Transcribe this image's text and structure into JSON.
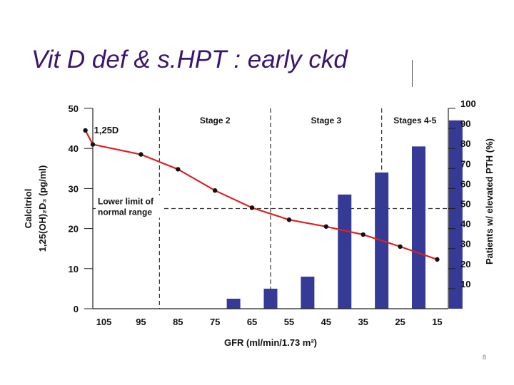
{
  "slide": {
    "title": "Vit D def & s.HPT : early ckd",
    "page_mark": "8"
  },
  "colors": {
    "title": "#3a1570",
    "bar": "#353a96",
    "line": "#e21f1f",
    "marker": "#111111"
  },
  "chart_data": {
    "type": "bar",
    "xlabel": "GFR (ml/min/1.73 m²)",
    "x_ticks": [
      105,
      95,
      85,
      75,
      65,
      55,
      45,
      35,
      25,
      15
    ],
    "x_range": [
      110,
      10
    ],
    "y_left": {
      "label_line1": "Calcitriol",
      "label_line2": "1,25(OH)₂D₃ (pg/ml)",
      "ticks": [
        0,
        10,
        20,
        30,
        40,
        50
      ],
      "range": [
        0,
        50
      ]
    },
    "y_right": {
      "label": "Patients w/ elevated PTH (%)",
      "ticks": [
        10,
        20,
        30,
        40,
        50,
        60,
        70,
        80,
        90,
        100
      ],
      "range": [
        0,
        100
      ]
    },
    "stages": [
      {
        "label": "Stage 2",
        "divider_gfr": 90
      },
      {
        "label": "Stage 3",
        "divider_gfr": 60
      },
      {
        "label": "Stages 4-5",
        "divider_gfr": 30
      }
    ],
    "reference_line": {
      "value": 25,
      "label_line1": "Lower limit of",
      "label_line2": "normal range"
    },
    "bar_series": {
      "axis": "right",
      "points": [
        {
          "gfr": 70,
          "value": 5
        },
        {
          "gfr": 60,
          "value": 10
        },
        {
          "gfr": 50,
          "value": 16
        },
        {
          "gfr": 40,
          "value": 57
        },
        {
          "gfr": 30,
          "value": 68
        },
        {
          "gfr": 20,
          "value": 81
        },
        {
          "gfr": 10,
          "value": 94
        }
      ]
    },
    "line_series": {
      "name": "1,25D",
      "axis": "left",
      "points": [
        {
          "gfr": 110,
          "value": 44.5
        },
        {
          "gfr": 108,
          "value": 41
        },
        {
          "gfr": 95,
          "value": 38.5
        },
        {
          "gfr": 85,
          "value": 34.8
        },
        {
          "gfr": 75,
          "value": 29.5
        },
        {
          "gfr": 65,
          "value": 25.2
        },
        {
          "gfr": 55,
          "value": 22.2
        },
        {
          "gfr": 45,
          "value": 20.5
        },
        {
          "gfr": 35,
          "value": 18.5
        },
        {
          "gfr": 25,
          "value": 15.5
        },
        {
          "gfr": 15,
          "value": 12.3
        }
      ]
    }
  }
}
